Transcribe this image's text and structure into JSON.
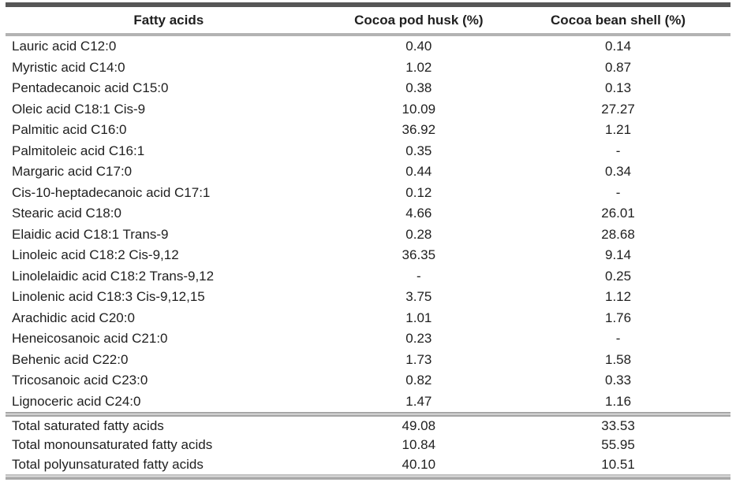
{
  "table": {
    "columns": [
      "Fatty acids",
      "Cocoa pod husk (%)",
      "Cocoa bean shell (%)"
    ],
    "rows": [
      {
        "name": "Lauric acid C12:0",
        "pod_husk": "0.40",
        "bean_shell": "0.14"
      },
      {
        "name": "Myristic acid C14:0",
        "pod_husk": "1.02",
        "bean_shell": "0.87"
      },
      {
        "name": "Pentadecanoic acid C15:0",
        "pod_husk": "0.38",
        "bean_shell": "0.13"
      },
      {
        "name": "Oleic acid C18:1 Cis-9",
        "pod_husk": "10.09",
        "bean_shell": "27.27"
      },
      {
        "name": "Palmitic acid C16:0",
        "pod_husk": "36.92",
        "bean_shell": "1.21"
      },
      {
        "name": "Palmitoleic acid C16:1",
        "pod_husk": "0.35",
        "bean_shell": "-"
      },
      {
        "name": "Margaric acid C17:0",
        "pod_husk": "0.44",
        "bean_shell": "0.34"
      },
      {
        "name": "Cis-10-heptadecanoic acid C17:1",
        "pod_husk": "0.12",
        "bean_shell": "-"
      },
      {
        "name": "Stearic acid C18:0",
        "pod_husk": "4.66",
        "bean_shell": "26.01"
      },
      {
        "name": "Elaidic acid C18:1 Trans-9",
        "pod_husk": "0.28",
        "bean_shell": "28.68"
      },
      {
        "name": "Linoleic acid C18:2 Cis-9,12",
        "pod_husk": "36.35",
        "bean_shell": "9.14"
      },
      {
        "name": "Linolelaidic acid C18:2 Trans-9,12",
        "pod_husk": "-",
        "bean_shell": "0.25"
      },
      {
        "name": "Linolenic acid C18:3 Cis-9,12,15",
        "pod_husk": "3.75",
        "bean_shell": "1.12"
      },
      {
        "name": "Arachidic acid C20:0",
        "pod_husk": "1.01",
        "bean_shell": "1.76"
      },
      {
        "name": "Heneicosanoic acid C21:0",
        "pod_husk": "0.23",
        "bean_shell": "-"
      },
      {
        "name": "Behenic acid C22:0",
        "pod_husk": "1.73",
        "bean_shell": "1.58"
      },
      {
        "name": "Tricosanoic acid C23:0",
        "pod_husk": "0.82",
        "bean_shell": "0.33"
      },
      {
        "name": "Lignoceric acid C24:0",
        "pod_husk": "1.47",
        "bean_shell": "1.16"
      }
    ],
    "totals": [
      {
        "name": "Total saturated fatty acids",
        "pod_husk": "49.08",
        "bean_shell": "33.53"
      },
      {
        "name": "Total monounsaturated fatty acids",
        "pod_husk": "10.84",
        "bean_shell": "55.95"
      },
      {
        "name": "Total polyunsaturated fatty acids",
        "pod_husk": "40.10",
        "bean_shell": "10.51"
      }
    ]
  },
  "colors": {
    "rule_dark": "#565656",
    "rule_light": "#b3b3b3",
    "text": "#1f1f1f",
    "background": "#ffffff"
  }
}
